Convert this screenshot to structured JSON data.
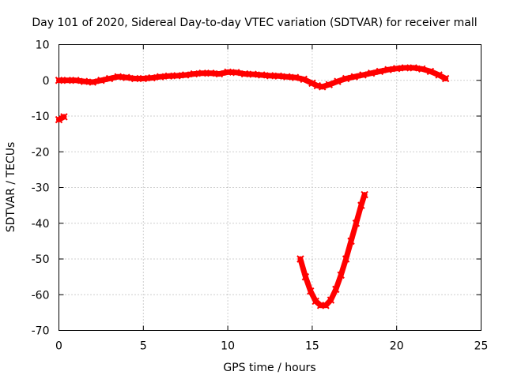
{
  "chart_data": {
    "type": "line",
    "title": "Day 101 of 2020, Sidereal Day-to-day VTEC variation (SDTVAR) for receiver mall",
    "xlabel": "GPS time / hours",
    "ylabel": "SDTVAR / TECUs",
    "xlim": [
      0,
      25
    ],
    "ylim": [
      -70,
      10
    ],
    "xticks": [
      0,
      5,
      10,
      15,
      20,
      25
    ],
    "yticks": [
      10,
      0,
      -10,
      -20,
      -30,
      -40,
      -50,
      -60,
      -70
    ],
    "grid": true,
    "series_color": "#ff0000",
    "series": [
      {
        "name": "main",
        "x": [
          0,
          0.5,
          1,
          1.5,
          2,
          2.5,
          3,
          3.5,
          4,
          4.5,
          5,
          5.5,
          6,
          6.5,
          7,
          7.5,
          8,
          8.5,
          9,
          9.5,
          10,
          10.5,
          11,
          11.5,
          12,
          12.5,
          13,
          13.5,
          14,
          14.5,
          15,
          15.3,
          15.6,
          16,
          16.5,
          17,
          17.5,
          18,
          18.5,
          19,
          19.5,
          20,
          20.5,
          21,
          21.5,
          22,
          22.5,
          22.9
        ],
        "y": [
          0,
          0,
          0,
          -0.3,
          -0.5,
          0,
          0.5,
          1,
          0.8,
          0.5,
          0.5,
          0.7,
          1,
          1.2,
          1.3,
          1.5,
          1.8,
          2,
          2,
          1.8,
          2.3,
          2.2,
          1.8,
          1.7,
          1.5,
          1.3,
          1.2,
          1,
          0.8,
          0.3,
          -0.8,
          -1.5,
          -1.8,
          -1.2,
          -0.3,
          0.5,
          1,
          1.5,
          2,
          2.5,
          3,
          3.3,
          3.5,
          3.5,
          3.2,
          2.5,
          1.5,
          0.5
        ]
      },
      {
        "name": "early",
        "x": [
          0,
          0.3
        ],
        "y": [
          -11,
          -10.2
        ]
      },
      {
        "name": "dip",
        "x": [
          14.3,
          14.6,
          14.9,
          15.2,
          15.5,
          15.8,
          16.1,
          16.4,
          16.7,
          17.0,
          17.3,
          17.6,
          17.9,
          18.1
        ],
        "y": [
          -50,
          -55,
          -59,
          -61.8,
          -63,
          -63,
          -61.5,
          -58.5,
          -54.5,
          -50,
          -45,
          -40,
          -35,
          -32
        ]
      }
    ]
  }
}
